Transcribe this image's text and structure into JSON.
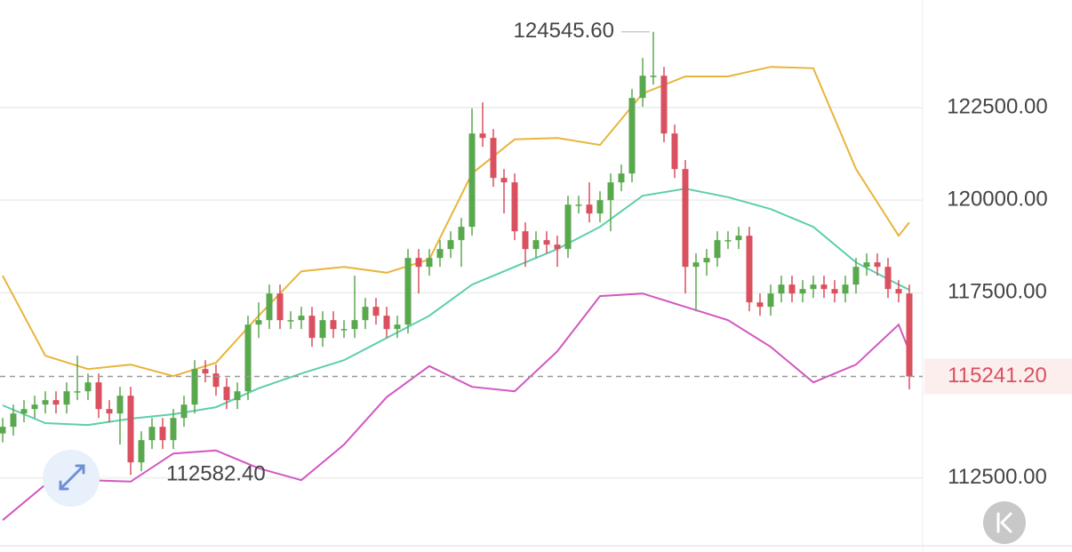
{
  "chart_data": {
    "type": "candlestick",
    "open": [
      113700,
      113880,
      114240,
      114360,
      114480,
      114600,
      114480,
      114840,
      114840,
      115080,
      114360,
      114240,
      114720,
      112920,
      113520,
      113880,
      113520,
      114120,
      114480,
      115440,
      115320,
      114960,
      114600,
      114840,
      116640,
      116760,
      117480,
      116760,
      116760,
      116880,
      116280,
      116760,
      116520,
      116520,
      116760,
      117120,
      116880,
      116520,
      116640,
      118440,
      118200,
      118440,
      118680,
      118920,
      119280,
      121800,
      121680,
      120600,
      120480,
      119160,
      118680,
      118920,
      118800,
      118680,
      119880,
      119880,
      119640,
      120000,
      120480,
      120720,
      122760,
      123360,
      123360,
      121800,
      120840,
      118200,
      118320,
      118440,
      118920,
      118920,
      119040,
      117240,
      117120,
      117480,
      117720,
      117480,
      117600,
      117720,
      117600,
      117480,
      117720,
      118200,
      118320,
      118200,
      117600,
      117480
    ],
    "high": [
      114120,
      114480,
      114600,
      114720,
      114840,
      114840,
      115080,
      115800,
      115320,
      115320,
      114600,
      114960,
      114960,
      113760,
      114120,
      114120,
      114360,
      114720,
      115680,
      115680,
      115560,
      115200,
      115080,
      116880,
      117240,
      117720,
      117720,
      117000,
      117120,
      117120,
      117000,
      117000,
      116760,
      117960,
      117360,
      117360,
      117120,
      116880,
      118680,
      118680,
      118680,
      118920,
      119160,
      119520,
      122480,
      122640,
      121920,
      120840,
      120720,
      119400,
      119160,
      119160,
      119040,
      120120,
      120120,
      120480,
      120240,
      120720,
      120960,
      123000,
      123840,
      124545.6,
      123600,
      122040,
      121080,
      118560,
      118680,
      119160,
      119160,
      119280,
      119280,
      117480,
      117720,
      117960,
      117960,
      117840,
      117960,
      117960,
      117840,
      117960,
      118440,
      118560,
      118560,
      118440,
      117840,
      117720
    ],
    "low": [
      113460,
      113640,
      114000,
      114120,
      114240,
      114240,
      114240,
      114600,
      114600,
      114120,
      114000,
      113400,
      112582.4,
      112680,
      113280,
      113280,
      113280,
      113880,
      114240,
      115080,
      114720,
      114360,
      114360,
      114600,
      116280,
      116520,
      116520,
      116520,
      116520,
      116040,
      116040,
      116280,
      116280,
      116280,
      116520,
      116640,
      116280,
      116280,
      116400,
      117480,
      117960,
      118200,
      118440,
      118200,
      119040,
      121440,
      120360,
      119640,
      118920,
      118200,
      118440,
      118560,
      118200,
      118440,
      119640,
      119400,
      119400,
      119160,
      120240,
      120480,
      122520,
      123120,
      121560,
      120600,
      117480,
      117000,
      117960,
      118200,
      118680,
      118680,
      117000,
      116880,
      116880,
      117240,
      117240,
      117240,
      117360,
      117360,
      117240,
      117240,
      117480,
      117960,
      117960,
      117360,
      117240,
      114890
    ],
    "close": [
      113880,
      114240,
      114360,
      114480,
      114600,
      114480,
      114840,
      114840,
      115080,
      114360,
      114240,
      114720,
      112920,
      113520,
      113880,
      113520,
      114120,
      114480,
      115440,
      115320,
      114960,
      114600,
      114840,
      116640,
      116760,
      117480,
      116760,
      116760,
      116880,
      116280,
      116760,
      116520,
      116520,
      116760,
      117120,
      116880,
      116520,
      116640,
      118440,
      118200,
      118440,
      118680,
      118920,
      119280,
      121800,
      121680,
      120600,
      120480,
      119160,
      118680,
      118920,
      118800,
      118680,
      119880,
      119880,
      119640,
      120000,
      120480,
      120720,
      122760,
      123360,
      123360,
      121800,
      120840,
      118200,
      118320,
      118440,
      118920,
      118920,
      119040,
      117240,
      117120,
      117480,
      117720,
      117480,
      117600,
      117720,
      117600,
      117480,
      117720,
      118200,
      118320,
      118200,
      117600,
      117480,
      115241.2
    ],
    "up_color": "#5aa84e",
    "down_color": "#d9505f",
    "band_x": [
      0,
      4,
      8,
      12,
      16,
      20,
      24,
      28,
      32,
      36,
      40,
      44,
      48,
      52,
      56,
      60,
      64,
      68,
      72,
      76,
      80,
      84,
      85
    ],
    "bands": [
      {
        "color": "#e8b53a",
        "values": [
          117960,
          115800,
          115440,
          115560,
          115250,
          115610,
          116880,
          118080,
          118200,
          118040,
          118400,
          120720,
          121640,
          121680,
          121490,
          122880,
          123340,
          123340,
          123600,
          123560,
          120840,
          119040,
          119400
        ]
      },
      {
        "color": "#5ccfaa",
        "values": [
          114460,
          113980,
          113930,
          114100,
          114220,
          114410,
          114920,
          115320,
          115680,
          116280,
          116880,
          117720,
          118200,
          118680,
          119280,
          120120,
          120310,
          120080,
          119760,
          119280,
          118320,
          117720,
          117580
        ]
      },
      {
        "color": "#d257c2",
        "values": [
          111360,
          112320,
          112440,
          112400,
          113160,
          113240,
          112760,
          112440,
          113400,
          114680,
          115520,
          114960,
          114840,
          115920,
          117410,
          117480,
          117120,
          116760,
          116040,
          115080,
          115560,
          116640,
          115920
        ]
      }
    ],
    "ylim": [
      110644,
      125404
    ],
    "yticks": [
      {
        "value": 112500,
        "label": "112500.00"
      },
      {
        "value": 117500,
        "label": "117500.00"
      },
      {
        "value": 120000,
        "label": "120000.00"
      },
      {
        "value": 122500,
        "label": "122500.00"
      }
    ],
    "grid": true,
    "last_price": {
      "value": 115241.2,
      "label": "115241.20"
    },
    "max_label": {
      "value": 124545.6,
      "label": "124545.60"
    },
    "min_label": {
      "value": 112582.4,
      "label": "112582.40"
    }
  }
}
